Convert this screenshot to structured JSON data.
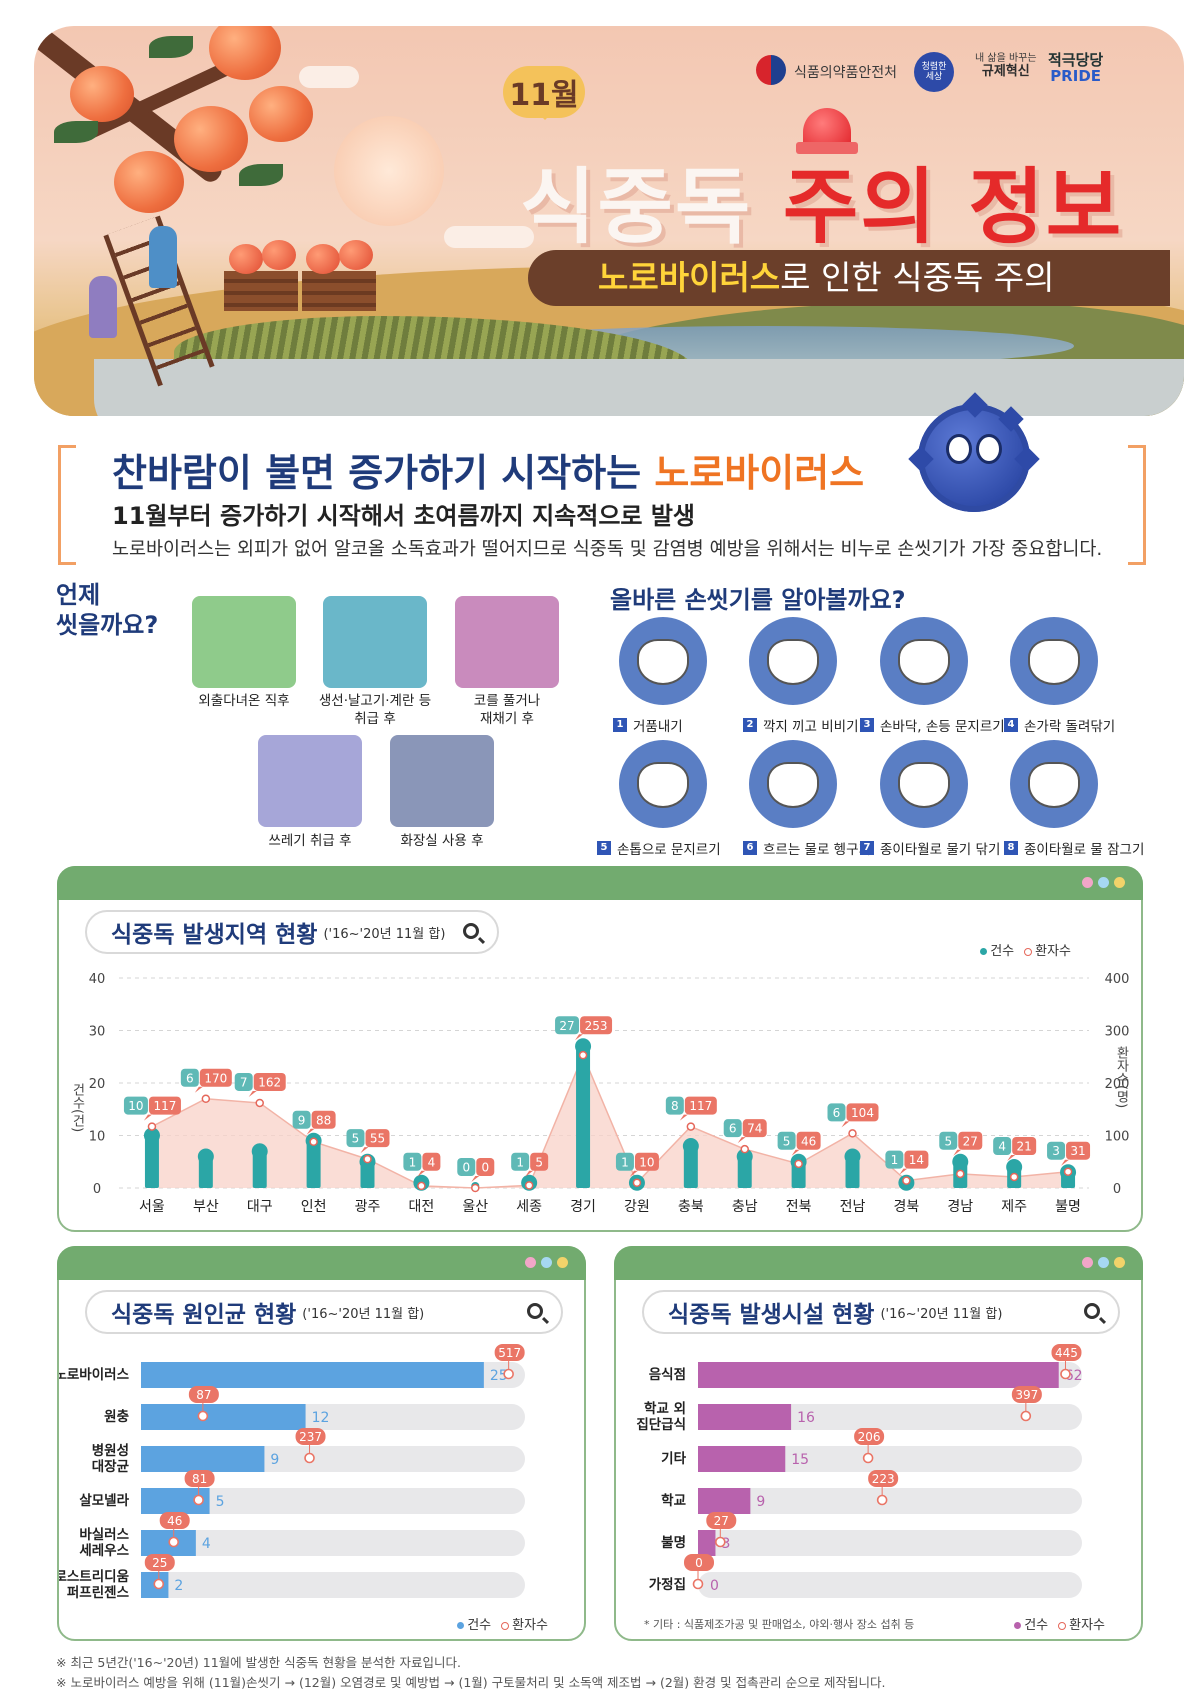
{
  "header": {
    "month": "11월",
    "title_part1": "식중독",
    "title_part2": "주의 정보",
    "subtitle_highlight": "노로바이러스",
    "subtitle_rest": "로 인한 식중독 주의",
    "logos": {
      "mfds": "식품의약품안전처",
      "clean_top": "청렴한",
      "clean_bottom": "세상",
      "reg_top": "내 삶을 바꾸는",
      "reg_bottom": "규제혁신",
      "pride_top": "적극당당",
      "pride_bottom": "PRIDE"
    }
  },
  "intro": {
    "title_plain": "찬바람이 불면 증가하기 시작하는 ",
    "title_highlight": "노로바이러스",
    "subtitle": "11월부터 증가하기 시작해서 초여름까지 지속적으로 발생",
    "description": "노로바이러스는 외피가 없어 알코올 소독효과가 떨어지므로 식중독 및 감염병 예방을 위해서는 비누로 손씻기가 가장 중요합니다."
  },
  "when": {
    "title_line1": "언제",
    "title_line2": "씻을까요?",
    "items": [
      {
        "line1": "외출다녀온 직후",
        "line2": ""
      },
      {
        "line1": "생선·날고기·계란 등",
        "line2": "취급 후"
      },
      {
        "line1": "코를 풀거나",
        "line2": "재채기 후"
      },
      {
        "line1": "쓰레기 취급 후",
        "line2": ""
      },
      {
        "line1": "화장실 사용 후",
        "line2": ""
      }
    ]
  },
  "how": {
    "title": "올바른 손씻기를 알아볼까요?",
    "steps": [
      {
        "num": "1",
        "label": "거품내기"
      },
      {
        "num": "2",
        "label": "깍지 끼고 비비기"
      },
      {
        "num": "3",
        "label": "손바닥, 손등 문지르기"
      },
      {
        "num": "4",
        "label": "손가락 돌려닦기"
      },
      {
        "num": "5",
        "label": "손톱으로 문지르기"
      },
      {
        "num": "6",
        "label": "흐르는 물로 헹구기"
      },
      {
        "num": "7",
        "label": "종이타월로 물기 닦기"
      },
      {
        "num": "8",
        "label": "종이타월로 물 잠그기"
      }
    ]
  },
  "colors": {
    "navy": "#1f3b7a",
    "orange": "#ef7423",
    "teal": "#2ba6a6",
    "coral": "#e5675a",
    "blue_bar": "#5ca3e0",
    "purple_bar": "#b862ad",
    "panel_green": "#72ab6f"
  },
  "chart_region": {
    "title": "식중독 발생지역 현황",
    "subtitle": "('16~'20년 11월 합)",
    "legend_cases": "건수",
    "legend_patients": "환자수",
    "y_left_label": "건수(건)",
    "y_right_label": "환자수(명)",
    "y_left_ticks": [
      "0",
      "10",
      "20",
      "30",
      "40"
    ],
    "y_right_ticks": [
      "0",
      "100",
      "200",
      "300",
      "400"
    ]
  },
  "chart_cause": {
    "title": "식중독 원인균 현황",
    "subtitle": "('16~'20년 11월 합)",
    "legend_cases": "건수",
    "legend_patients": "환자수",
    "label_lines": [
      [
        "노로바이러스"
      ],
      [
        "원충"
      ],
      [
        "병원성",
        "대장균"
      ],
      [
        "살모넬라"
      ],
      [
        "바실러스",
        "세레우스"
      ],
      [
        "클로스트리디움",
        "퍼프린젠스"
      ]
    ]
  },
  "chart_facility": {
    "title": "식중독 발생시설 현황",
    "subtitle": "('16~'20년 11월 합)",
    "legend_cases": "건수",
    "legend_patients": "환자수",
    "note": "* 기타 : 식품제조가공 및 판매업소, 야외·행사 장소 섭취 등",
    "label_lines": [
      [
        "음식점"
      ],
      [
        "학교 외",
        "집단급식"
      ],
      [
        "기타"
      ],
      [
        "학교"
      ],
      [
        "불명"
      ],
      [
        "가정집"
      ]
    ]
  },
  "chart_data": [
    {
      "type": "bar",
      "title": "식중독 발생지역 현황",
      "categories": [
        "서울",
        "부산",
        "대구",
        "인천",
        "광주",
        "대전",
        "울산",
        "세종",
        "경기",
        "강원",
        "충북",
        "충남",
        "전북",
        "전남",
        "경북",
        "경남",
        "제주",
        "불명"
      ],
      "series": [
        {
          "name": "건수",
          "axis": "left",
          "values": [
            10,
            6,
            7,
            9,
            5,
            1,
            0,
            1,
            27,
            1,
            8,
            6,
            5,
            6,
            1,
            5,
            4,
            3
          ]
        },
        {
          "name": "환자수",
          "axis": "right",
          "type": "area",
          "values": [
            117,
            170,
            162,
            88,
            55,
            4,
            0,
            5,
            253,
            10,
            117,
            74,
            46,
            104,
            14,
            27,
            21,
            31
          ]
        }
      ],
      "ylim_left": [
        0,
        40
      ],
      "ylim_right": [
        0,
        400
      ],
      "ylabel_left": "건수(건)",
      "ylabel_right": "환자수(명)"
    },
    {
      "type": "bar",
      "orientation": "horizontal",
      "title": "식중독 원인균 현황",
      "categories": [
        "노로바이러스",
        "원충",
        "병원성 대장균",
        "살모넬라",
        "바실러스 세레우스",
        "클로스트리디움 퍼프린젠스"
      ],
      "series": [
        {
          "name": "건수",
          "values": [
            25,
            12,
            9,
            5,
            4,
            2
          ]
        },
        {
          "name": "환자수",
          "values": [
            517,
            87,
            237,
            81,
            46,
            25
          ]
        }
      ]
    },
    {
      "type": "bar",
      "orientation": "horizontal",
      "title": "식중독 발생시설 현황",
      "categories": [
        "음식점",
        "학교 외 집단급식",
        "기타",
        "학교",
        "불명",
        "가정집"
      ],
      "series": [
        {
          "name": "건수",
          "values": [
            62,
            16,
            15,
            9,
            3,
            0
          ]
        },
        {
          "name": "환자수",
          "values": [
            445,
            397,
            206,
            223,
            27,
            0
          ]
        }
      ]
    }
  ],
  "footnotes": [
    "※ 최근 5년간('16~'20년) 11월에 발생한 식중독 현황을 분석한 자료입니다.",
    "※ 노로바이러스 예방을 위해 (11월)손씻기 → (12월) 오염경로 및 예방법 → (1월) 구토물처리 및 소독액 제조법 → (2월) 환경 및 접촉관리 순으로 제작됩니다."
  ]
}
